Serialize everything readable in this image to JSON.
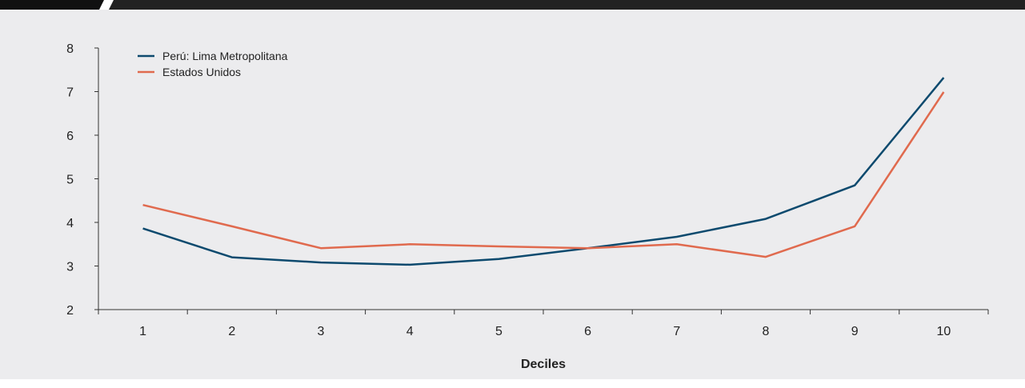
{
  "chart_data": {
    "type": "line",
    "title": "",
    "xlabel": "Deciles",
    "ylabel": "",
    "categories": [
      "1",
      "2",
      "3",
      "4",
      "5",
      "6",
      "7",
      "8",
      "9",
      "10"
    ],
    "ylim": [
      2,
      8
    ],
    "yticks": [
      2,
      3,
      4,
      5,
      6,
      7,
      8
    ],
    "grid": false,
    "legend_position": "top-left",
    "series": [
      {
        "name": "Perú: Lima Metropolitana",
        "color": "#0d4a6e",
        "values": [
          3.86,
          3.2,
          3.08,
          3.03,
          3.16,
          3.41,
          3.67,
          4.08,
          4.85,
          7.32
        ]
      },
      {
        "name": "Estados Unidos",
        "color": "#e06a4e",
        "values": [
          4.4,
          3.91,
          3.41,
          3.5,
          3.45,
          3.41,
          3.5,
          3.21,
          3.91,
          6.99
        ]
      }
    ]
  }
}
